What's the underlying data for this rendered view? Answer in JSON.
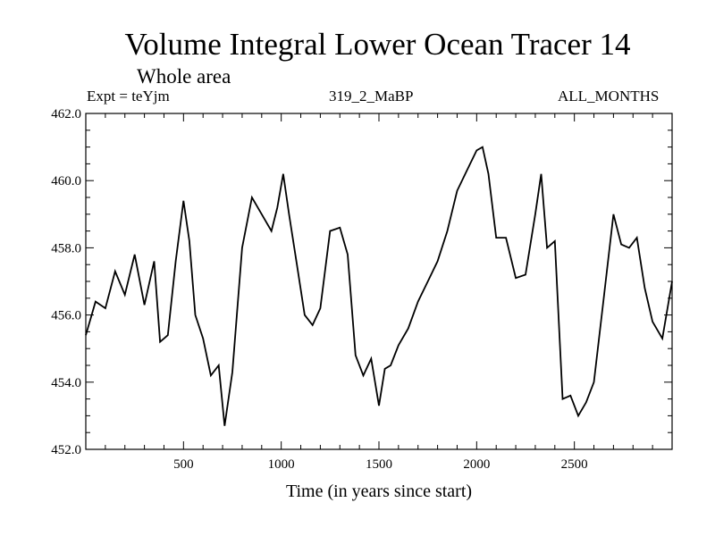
{
  "chart_data": {
    "type": "line",
    "title": "Volume Integral Lower Ocean Tracer 14",
    "subtitle": "Whole area",
    "left_label": "Expt = teYjm",
    "center_label": "319_2_MaBP",
    "right_label": "ALL_MONTHS",
    "xlabel": "Time (in years since start)",
    "ylabel": "",
    "xlim": [
      0,
      3000
    ],
    "ylim": [
      452.0,
      462.0
    ],
    "xticks": [
      500,
      1000,
      1500,
      2000,
      2500
    ],
    "xtick_labels": [
      "500",
      "1000",
      "1500",
      "2000",
      "2500"
    ],
    "yticks": [
      452.0,
      454.0,
      456.0,
      458.0,
      460.0,
      462.0
    ],
    "ytick_labels": [
      "452.0",
      "454.0",
      "456.0",
      "458.0",
      "460.0",
      "462.0"
    ],
    "series": [
      {
        "name": "Volume Integral Lower Ocean Tracer 14",
        "x": [
          0,
          50,
          100,
          150,
          200,
          250,
          300,
          350,
          380,
          420,
          460,
          500,
          530,
          560,
          600,
          640,
          680,
          710,
          750,
          800,
          850,
          900,
          950,
          980,
          1010,
          1040,
          1080,
          1120,
          1160,
          1200,
          1250,
          1300,
          1340,
          1380,
          1420,
          1460,
          1500,
          1530,
          1560,
          1600,
          1650,
          1700,
          1750,
          1800,
          1850,
          1900,
          1950,
          2000,
          2030,
          2060,
          2100,
          2150,
          2200,
          2250,
          2300,
          2330,
          2360,
          2400,
          2440,
          2480,
          2520,
          2560,
          2600,
          2650,
          2700,
          2740,
          2780,
          2820,
          2860,
          2900,
          2950,
          3000
        ],
        "values": [
          455.4,
          456.4,
          456.2,
          457.3,
          456.6,
          457.8,
          456.3,
          457.6,
          455.2,
          455.4,
          457.6,
          459.4,
          458.2,
          456.0,
          455.3,
          454.2,
          454.5,
          452.7,
          454.3,
          458.0,
          459.5,
          459.0,
          458.5,
          459.2,
          460.2,
          459.0,
          457.5,
          456.0,
          455.7,
          456.2,
          458.5,
          458.6,
          457.8,
          454.8,
          454.2,
          454.7,
          453.3,
          454.4,
          454.5,
          455.1,
          455.6,
          456.4,
          457.0,
          457.6,
          458.5,
          459.7,
          460.3,
          460.9,
          461.0,
          460.2,
          458.3,
          458.3,
          457.1,
          457.2,
          459.0,
          460.2,
          458.0,
          458.2,
          453.5,
          453.6,
          453.0,
          453.4,
          454.0,
          456.5,
          459.0,
          458.1,
          458.0,
          458.3,
          456.8,
          455.8,
          455.3,
          457.0
        ]
      }
    ]
  }
}
